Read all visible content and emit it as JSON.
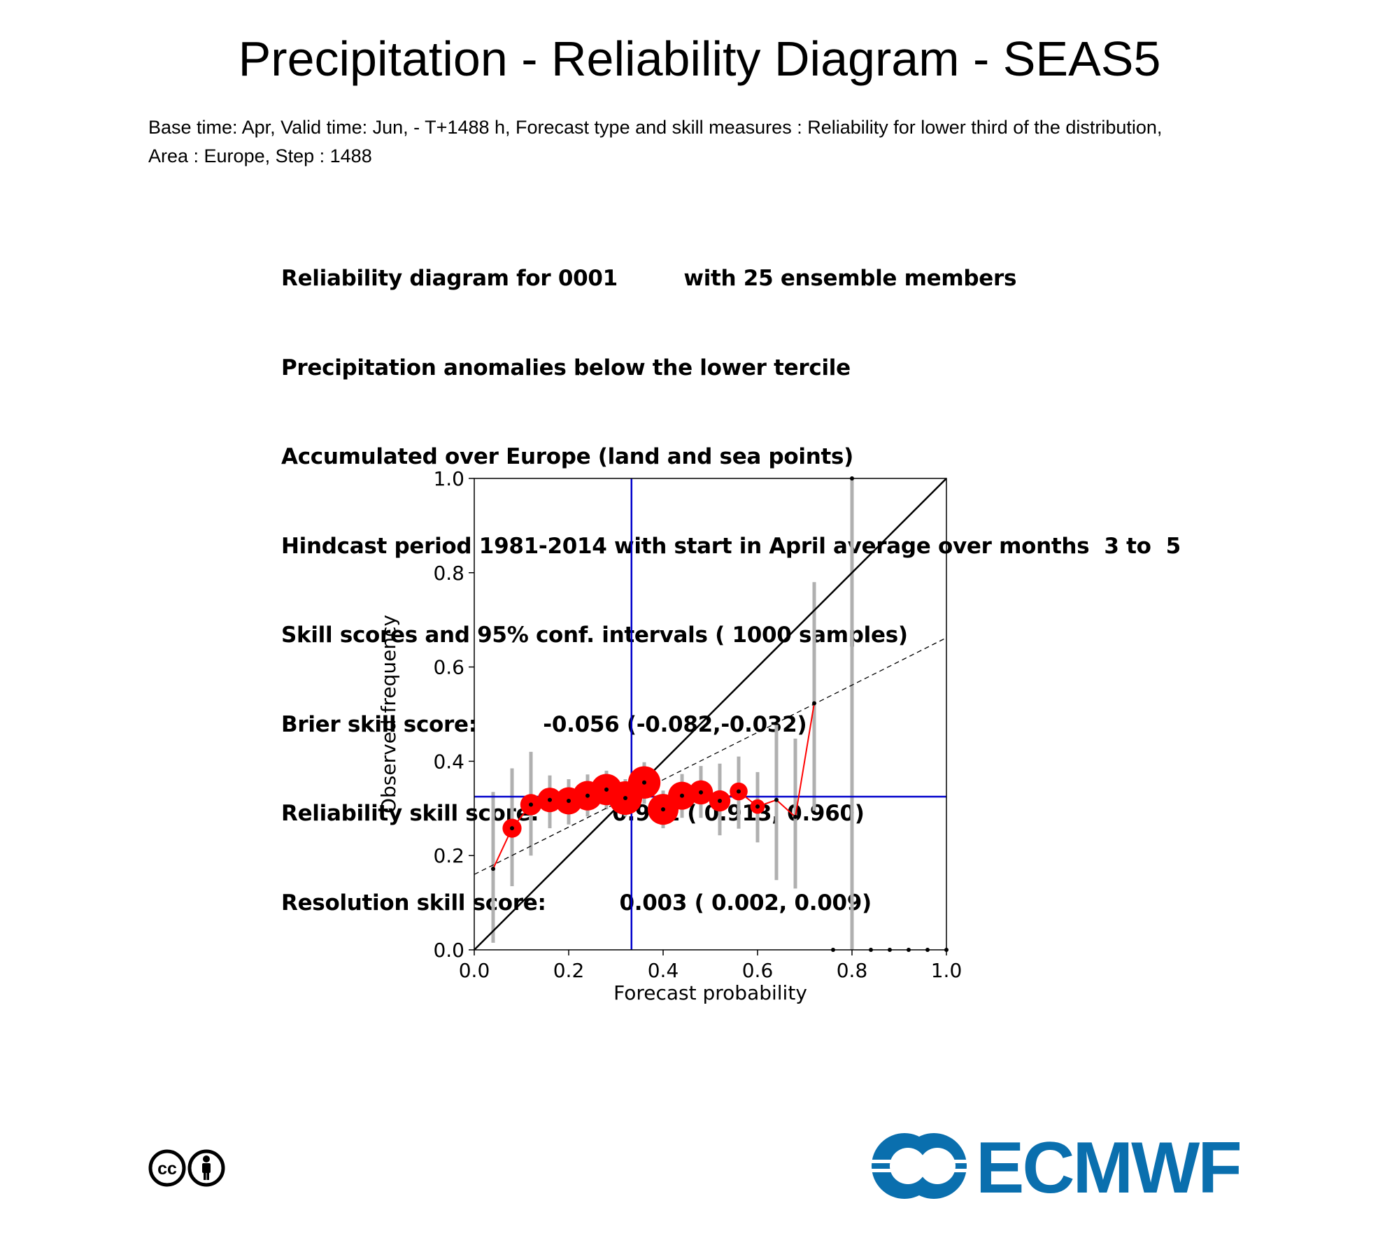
{
  "title": "Precipitation - Reliability Diagram - SEAS5",
  "subtitle": {
    "line1": "Base time: Apr, Valid time: Jun, - T+1488 h, Forecast type and skill measures : Reliability for lower third of the distribution,",
    "line2": "Area : Europe, Step : 1488"
  },
  "info_lines": [
    "Reliability diagram for 0001         with 25 ensemble members",
    "Precipitation anomalies below the lower tercile",
    "Accumulated over Europe (land and sea points)",
    "Hindcast period 1981-2014 with start in April average over months  3 to  5",
    "Skill scores and 95% conf. intervals ( 1000 samples)",
    "Brier skill score:         -0.056 (-0.082,-0.032)",
    "Reliability skill score:          0.941 ( 0.913, 0.960)",
    "Resolution skill score:          0.003 ( 0.002, 0.009)"
  ],
  "chart_data": {
    "type": "scatter",
    "title": "",
    "xlabel": "Forecast probability",
    "ylabel": "Observed frequency",
    "xlim": [
      0,
      1
    ],
    "ylim": [
      0,
      1
    ],
    "x_ticks": [
      "0.0",
      "0.2",
      "0.4",
      "0.6",
      "0.8",
      "1.0"
    ],
    "y_ticks": [
      "0.0",
      "0.2",
      "0.4",
      "0.6",
      "0.8",
      "1.0"
    ],
    "climatology": {
      "x": 0.333,
      "y": 0.325
    },
    "regression_line": {
      "x": [
        0,
        1
      ],
      "y": [
        0.16,
        0.662
      ]
    },
    "points": [
      {
        "x": 0.04,
        "y": 0.172,
        "ci": [
          0.015,
          0.335
        ],
        "size": 0.0
      },
      {
        "x": 0.08,
        "y": 0.258,
        "ci": [
          0.135,
          0.385
        ],
        "size": 0.35
      },
      {
        "x": 0.12,
        "y": 0.308,
        "ci": [
          0.2,
          0.42
        ],
        "size": 0.45
      },
      {
        "x": 0.16,
        "y": 0.318,
        "ci": [
          0.258,
          0.37
        ],
        "size": 0.6
      },
      {
        "x": 0.2,
        "y": 0.316,
        "ci": [
          0.266,
          0.362
        ],
        "size": 0.72
      },
      {
        "x": 0.24,
        "y": 0.327,
        "ci": [
          0.283,
          0.372
        ],
        "size": 0.82
      },
      {
        "x": 0.28,
        "y": 0.34,
        "ci": [
          0.298,
          0.38
        ],
        "size": 0.9
      },
      {
        "x": 0.32,
        "y": 0.322,
        "ci": [
          0.283,
          0.362
        ],
        "size": 1.0
      },
      {
        "x": 0.36,
        "y": 0.355,
        "ci": [
          0.31,
          0.398
        ],
        "size": 0.95
      },
      {
        "x": 0.4,
        "y": 0.298,
        "ci": [
          0.258,
          0.338
        ],
        "size": 0.88
      },
      {
        "x": 0.44,
        "y": 0.327,
        "ci": [
          0.28,
          0.373
        ],
        "size": 0.75
      },
      {
        "x": 0.48,
        "y": 0.334,
        "ci": [
          0.28,
          0.39
        ],
        "size": 0.58
      },
      {
        "x": 0.52,
        "y": 0.316,
        "ci": [
          0.243,
          0.395
        ],
        "size": 0.45
      },
      {
        "x": 0.56,
        "y": 0.336,
        "ci": [
          0.257,
          0.41
        ],
        "size": 0.3
      },
      {
        "x": 0.6,
        "y": 0.304,
        "ci": [
          0.228,
          0.377
        ],
        "size": 0.15
      },
      {
        "x": 0.64,
        "y": 0.318,
        "ci": [
          0.148,
          0.477
        ],
        "size": 0.0
      },
      {
        "x": 0.68,
        "y": 0.282,
        "ci": [
          0.13,
          0.448
        ],
        "size": 0.0
      },
      {
        "x": 0.72,
        "y": 0.523,
        "ci": [
          0.295,
          0.78
        ],
        "size": 0.0
      },
      {
        "x": 0.8,
        "y": 1.0,
        "ci": [
          0.0,
          1.0
        ],
        "size": 0.0
      }
    ],
    "zero_sample_points": [
      0.76,
      0.84,
      0.88,
      0.92,
      0.96,
      1.0
    ]
  },
  "cc_badge": [
    "cc",
    "by"
  ],
  "logo_text": "ECMWF",
  "colors": {
    "points": "#ff0000",
    "climatology": "#0000cc",
    "ci_bars": "#b0b0b0",
    "logo": "#0a6fae"
  }
}
